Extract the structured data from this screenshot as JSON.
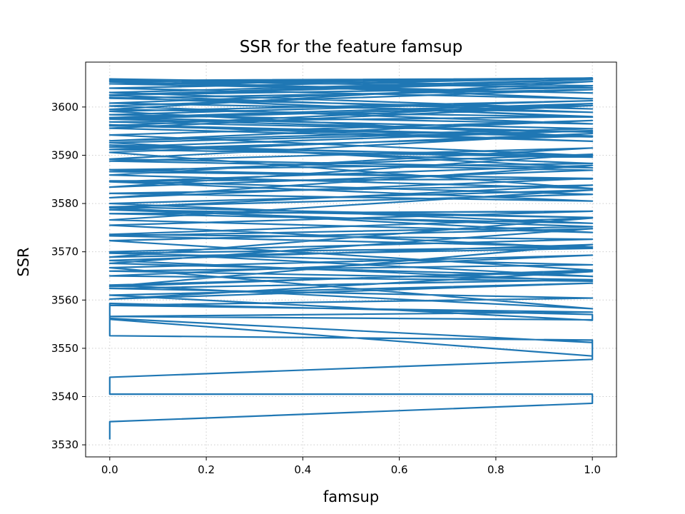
{
  "chart_data": {
    "type": "line",
    "title": "SSR for the feature famsup",
    "xlabel": "famsup",
    "ylabel": "SSR",
    "xlim": [
      -0.05,
      1.05
    ],
    "ylim": [
      3527.5,
      3609.3
    ],
    "xticks": [
      0.0,
      0.2,
      0.4,
      0.6,
      0.8,
      1.0
    ],
    "xtick_labels": [
      "0.0",
      "0.2",
      "0.4",
      "0.6",
      "0.8",
      "1.0"
    ],
    "yticks": [
      3530,
      3540,
      3550,
      3560,
      3570,
      3580,
      3590,
      3600
    ],
    "ytick_labels": [
      "3530",
      "3540",
      "3550",
      "3560",
      "3570",
      "3580",
      "3590",
      "3600"
    ],
    "grid": true,
    "grid_style": "dotted",
    "line_color": "#1f77b4",
    "series": [
      {
        "x": [
          0,
          0,
          1,
          1,
          0,
          0,
          1,
          1,
          0,
          0,
          1,
          1,
          0,
          0,
          1,
          1,
          0,
          1,
          0,
          1,
          0,
          1,
          0,
          1,
          0,
          1,
          0,
          1,
          0,
          1,
          0,
          1,
          0,
          1,
          0,
          1,
          0,
          1,
          0,
          1,
          0,
          1,
          0,
          1,
          0,
          1,
          0,
          1,
          0,
          1,
          0,
          1,
          0,
          1,
          0,
          1,
          0,
          1,
          0,
          1,
          0,
          1,
          0,
          1,
          0,
          1,
          0,
          1,
          0,
          1,
          0,
          1,
          0,
          1,
          0,
          1,
          0,
          1,
          0,
          1,
          0,
          1,
          0,
          1,
          0,
          1,
          0,
          1,
          0,
          1,
          0,
          1,
          0,
          1,
          0,
          1,
          0,
          1,
          0,
          1,
          0,
          1,
          0,
          1,
          0,
          1,
          0,
          1,
          0,
          1,
          0,
          1,
          0,
          1,
          0,
          1,
          0,
          1,
          0,
          1,
          0,
          1,
          0,
          1,
          0,
          1,
          0,
          1,
          0,
          1,
          0,
          1,
          0,
          1,
          0,
          1,
          0,
          1,
          0,
          1,
          0,
          1
        ],
        "y": [
          3531.1,
          3534.8,
          3538.6,
          3540.5,
          3540.5,
          3544.0,
          3547.7,
          3551.7,
          3552.6,
          3556.2,
          3551.2,
          3548.4,
          3556.0,
          3559.3,
          3557.0,
          3555.8,
          3561.0,
          3563.5,
          3560.2,
          3565.9,
          3563.1,
          3558.2,
          3566.7,
          3569.3,
          3565.0,
          3563.9,
          3568.2,
          3571.5,
          3562.8,
          3566.2,
          3572.3,
          3574.8,
          3567.6,
          3564.9,
          3570.0,
          3572.6,
          3573.6,
          3577.0,
          3568.9,
          3570.7,
          3575.5,
          3578.4,
          3577.9,
          3575.9,
          3580.0,
          3582.8,
          3576.6,
          3574.0,
          3579.1,
          3583.8,
          3582.1,
          3580.5,
          3584.5,
          3587.9,
          3581.2,
          3585.2,
          3586.6,
          3590.2,
          3583.4,
          3586.9,
          3588.8,
          3591.5,
          3585.9,
          3583.1,
          3590.6,
          3594.5,
          3589.2,
          3587.4,
          3592.6,
          3595.1,
          3591.7,
          3589.9,
          3594.2,
          3597.2,
          3593.0,
          3595.5,
          3597.8,
          3600.7,
          3596.1,
          3593.8,
          3599.1,
          3601.3,
          3598.4,
          3596.5,
          3600.2,
          3603.6,
          3601.8,
          3599.6,
          3603.0,
          3605.7,
          3602.5,
          3604.0,
          3605.5,
          3605.9,
          3604.8,
          3602.9,
          3605.2,
          3606.0,
          3603.9,
          3601.7,
          3605.8,
          3604.4,
          3600.8,
          3598.9,
          3602.4,
          3605.3,
          3599.5,
          3597.9,
          3602.0,
          3598.0,
          3596.9,
          3594.8,
          3597.5,
          3600.3,
          3595.6,
          3592.9,
          3596.3,
          3594.0,
          3591.2,
          3589.6,
          3592.1,
          3588.3,
          3587.0,
          3585.1,
          3584.7,
          3581.9,
          3579.3,
          3577.1,
          3578.7,
          3575.2,
          3573.3,
          3571.0,
          3569.7,
          3567.3,
          3566.0,
          3564.2,
          3562.4,
          3560.4,
          3558.9,
          3557.5,
          3556.6,
          3555.9
        ]
      }
    ]
  }
}
